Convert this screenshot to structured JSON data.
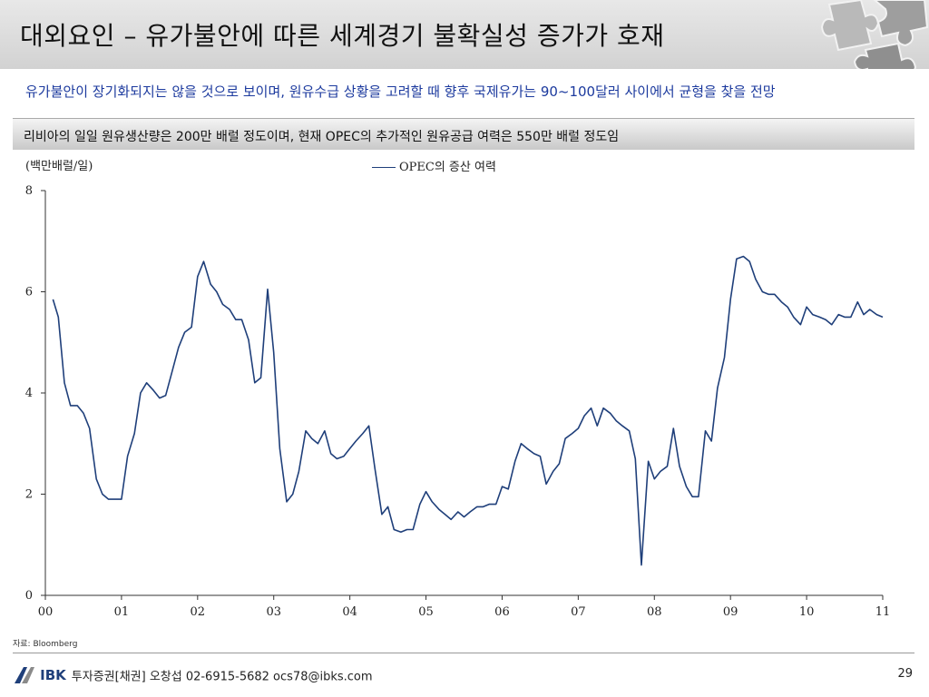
{
  "header": {
    "title": "대외요인 – 유가불안에 따른 세계경기 불확실성 증가가 호재",
    "subtitle": "유가불안이 장기화되지는 않을 것으로 보이며, 원유수급 상황을 고려할 때 향후 국제유가는 90~100달러 사이에서 균형을 찾을 전망"
  },
  "caption": "리비아의 일일 원유생산량은 200만 배럴 정도이며, 현재 OPEC의 추가적인 원유공급 여력은 550만 배럴 정도임",
  "chart_data": {
    "type": "line",
    "unit_label": "(백만배럴/일)",
    "legend": "OPEC의 증산 여력",
    "series_color": "#1f3f7a",
    "ylim": [
      0,
      8
    ],
    "yticks": [
      "0",
      "2",
      "4",
      "6",
      "8"
    ],
    "xlim": [
      2000,
      2011
    ],
    "xticks": [
      "00",
      "01",
      "02",
      "03",
      "04",
      "05",
      "06",
      "07",
      "08",
      "09",
      "10",
      "11"
    ],
    "series": [
      {
        "name": "OPEC의 증산 여력",
        "x": [
          2000.1,
          2000.17,
          2000.25,
          2000.33,
          2000.42,
          2000.5,
          2000.58,
          2000.67,
          2000.75,
          2000.83,
          2000.92,
          2001.0,
          2001.08,
          2001.17,
          2001.25,
          2001.33,
          2001.42,
          2001.5,
          2001.58,
          2001.67,
          2001.75,
          2001.83,
          2001.92,
          2002.0,
          2002.08,
          2002.17,
          2002.25,
          2002.33,
          2002.42,
          2002.5,
          2002.58,
          2002.67,
          2002.75,
          2002.83,
          2002.92,
          2003.0,
          2003.08,
          2003.17,
          2003.25,
          2003.33,
          2003.42,
          2003.5,
          2003.58,
          2003.67,
          2003.75,
          2003.83,
          2003.92,
          2004.0,
          2004.08,
          2004.17,
          2004.25,
          2004.33,
          2004.42,
          2004.5,
          2004.58,
          2004.67,
          2004.75,
          2004.83,
          2004.92,
          2005.0,
          2005.08,
          2005.17,
          2005.25,
          2005.33,
          2005.42,
          2005.5,
          2005.58,
          2005.67,
          2005.75,
          2005.83,
          2005.92,
          2006.0,
          2006.08,
          2006.17,
          2006.25,
          2006.33,
          2006.42,
          2006.5,
          2006.58,
          2006.67,
          2006.75,
          2006.83,
          2006.92,
          2007.0,
          2007.08,
          2007.17,
          2007.25,
          2007.33,
          2007.42,
          2007.5,
          2007.58,
          2007.67,
          2007.75,
          2007.83,
          2007.92,
          2008.0,
          2008.08,
          2008.17,
          2008.25,
          2008.33,
          2008.42,
          2008.5,
          2008.58,
          2008.67,
          2008.75,
          2008.83,
          2008.92,
          2009.0,
          2009.08,
          2009.17,
          2009.25,
          2009.33,
          2009.42,
          2009.5,
          2009.58,
          2009.67,
          2009.75,
          2009.83,
          2009.92,
          2010.0,
          2010.08,
          2010.17,
          2010.25,
          2010.33,
          2010.42,
          2010.5,
          2010.58,
          2010.67,
          2010.75,
          2010.83,
          2010.92,
          2011.0
        ],
        "values": [
          5.85,
          5.5,
          4.2,
          3.75,
          3.75,
          3.6,
          3.3,
          2.3,
          2.0,
          1.9,
          1.9,
          1.9,
          2.75,
          3.2,
          4.0,
          4.2,
          4.05,
          3.9,
          3.95,
          4.45,
          4.9,
          5.2,
          5.3,
          6.3,
          6.6,
          6.15,
          6.0,
          5.75,
          5.65,
          5.45,
          5.45,
          5.05,
          4.2,
          4.3,
          6.05,
          4.8,
          2.9,
          1.85,
          2.0,
          2.45,
          3.25,
          3.1,
          3.0,
          3.25,
          2.8,
          2.7,
          2.75,
          2.9,
          3.05,
          3.2,
          3.35,
          2.5,
          1.6,
          1.75,
          1.3,
          1.25,
          1.3,
          1.3,
          1.8,
          2.05,
          1.85,
          1.7,
          1.6,
          1.5,
          1.65,
          1.55,
          1.65,
          1.75,
          1.75,
          1.8,
          1.8,
          2.15,
          2.1,
          2.65,
          3.0,
          2.9,
          2.8,
          2.75,
          2.2,
          2.45,
          2.6,
          3.1,
          3.2,
          3.3,
          3.55,
          3.7,
          3.35,
          3.7,
          3.6,
          3.45,
          3.35,
          3.25,
          2.7,
          0.6,
          2.65,
          2.3,
          2.45,
          2.55,
          3.3,
          2.55,
          2.15,
          1.95,
          1.95,
          3.25,
          3.05,
          4.1,
          4.7,
          5.85,
          6.65,
          6.7,
          6.6,
          6.25,
          6.0,
          5.95,
          5.95,
          5.8,
          5.7,
          5.5,
          5.35,
          5.7,
          5.55,
          5.5,
          5.45,
          5.35,
          5.55,
          5.5,
          5.5,
          5.8,
          5.55,
          5.65,
          5.55,
          5.5
        ]
      }
    ]
  },
  "footer": {
    "source": "자료: Bloomberg",
    "logo_text": "IBK",
    "company_contact": "투자증권[채권] 오창섭 02-6915-5682 ocs78@ibks.com",
    "page_number": "29"
  }
}
